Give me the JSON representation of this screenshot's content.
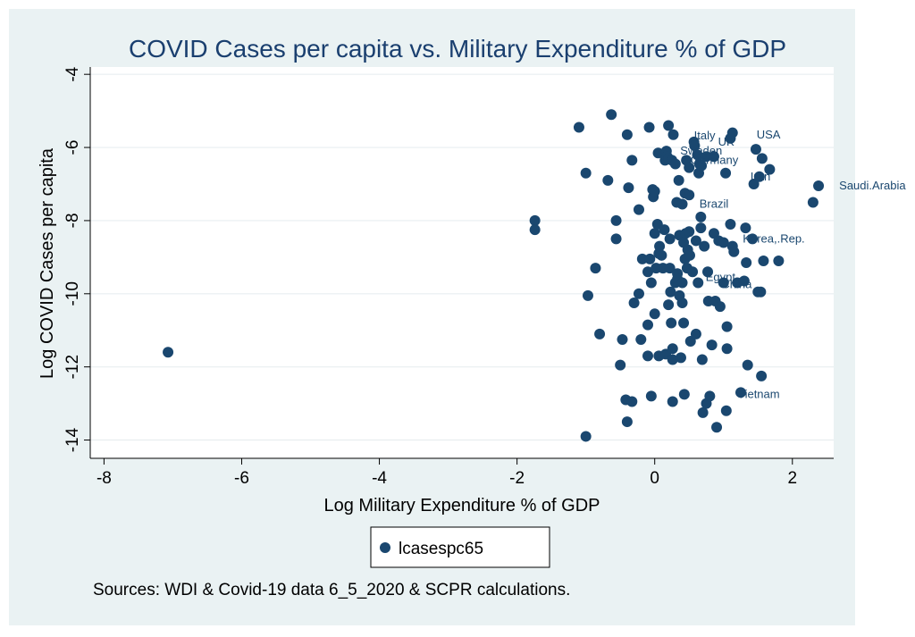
{
  "chart_data": {
    "type": "scatter",
    "title": "COVID Cases per capita vs. Military Expenditure % of GDP",
    "xlabel": "Log Military Expenditure % of GDP",
    "ylabel": "Log COVID Cases per capita",
    "xlim": [
      -8.2,
      2.6
    ],
    "ylim": [
      -14.5,
      -3.8
    ],
    "xticks": [
      -8,
      -6,
      -4,
      -2,
      0,
      2
    ],
    "yticks": [
      -4,
      -6,
      -8,
      -10,
      -12,
      -14
    ],
    "xtick_labels": [
      "-8",
      "-6",
      "-4",
      "-2",
      "0",
      "2"
    ],
    "ytick_labels": [
      "-4",
      "-6",
      "-8",
      "-10",
      "-12",
      "-14"
    ],
    "grid": "horizontal",
    "legend_position": "bottom",
    "note": "Sources: WDI & Covid-19 data 6_5_2020 & SCPR calculations.",
    "marker_color": "#1a476f",
    "series": [
      {
        "name": "lcasespc65",
        "points": [
          [
            -7.07,
            -11.6
          ],
          [
            -1.74,
            -8.0
          ],
          [
            -1.74,
            -8.25
          ],
          [
            -1.1,
            -5.45
          ],
          [
            -1.0,
            -6.7
          ],
          [
            -1.0,
            -13.9
          ],
          [
            -0.97,
            -10.05
          ],
          [
            -0.86,
            -9.3
          ],
          [
            -0.8,
            -11.1
          ],
          [
            -0.68,
            -6.9
          ],
          [
            -0.63,
            -5.1
          ],
          [
            -0.56,
            -8.0
          ],
          [
            -0.56,
            -8.5
          ],
          [
            -0.5,
            -11.95
          ],
          [
            -0.47,
            -11.25
          ],
          [
            -0.42,
            -12.9
          ],
          [
            -0.4,
            -13.5
          ],
          [
            -0.4,
            -5.65
          ],
          [
            -0.38,
            -7.1
          ],
          [
            -0.33,
            -6.35
          ],
          [
            -0.33,
            -12.95
          ],
          [
            -0.3,
            -10.25
          ],
          [
            -0.23,
            -10.0
          ],
          [
            -0.23,
            -7.7
          ],
          [
            -0.2,
            -11.25
          ],
          [
            -0.18,
            -9.05
          ],
          [
            -0.1,
            -10.85
          ],
          [
            -0.1,
            -11.7
          ],
          [
            -0.1,
            -9.4
          ],
          [
            -0.08,
            -5.45
          ],
          [
            -0.07,
            -9.05
          ],
          [
            -0.05,
            -9.7
          ],
          [
            -0.05,
            -12.8
          ],
          [
            -0.03,
            -7.15
          ],
          [
            -0.02,
            -7.35
          ],
          [
            0.0,
            -8.35
          ],
          [
            0.0,
            -10.55
          ],
          [
            0.0,
            -7.2
          ],
          [
            0.02,
            -9.3
          ],
          [
            0.04,
            -8.1
          ],
          [
            0.05,
            -6.15
          ],
          [
            0.06,
            -8.9
          ],
          [
            0.06,
            -11.7
          ],
          [
            0.07,
            -8.7
          ],
          [
            0.1,
            -8.95
          ],
          [
            0.12,
            -9.3
          ],
          [
            0.14,
            -8.25
          ],
          [
            0.15,
            -6.35
          ],
          [
            0.16,
            -11.65
          ],
          [
            0.17,
            -6.1
          ],
          [
            0.18,
            -6.25
          ],
          [
            0.2,
            -10.3
          ],
          [
            0.2,
            -6.3
          ],
          [
            0.2,
            -5.4
          ],
          [
            0.22,
            -8.5
          ],
          [
            0.22,
            -9.3
          ],
          [
            0.23,
            -9.95
          ],
          [
            0.24,
            -10.8
          ],
          [
            0.25,
            -6.35
          ],
          [
            0.26,
            -11.5
          ],
          [
            0.26,
            -11.8
          ],
          [
            0.26,
            -12.95
          ],
          [
            0.27,
            -5.65
          ],
          [
            0.3,
            -6.45
          ],
          [
            0.3,
            -9.7
          ],
          [
            0.32,
            -7.5
          ],
          [
            0.33,
            -9.45
          ],
          [
            0.33,
            -9.6
          ],
          [
            0.35,
            -6.9
          ],
          [
            0.36,
            -8.4
          ],
          [
            0.36,
            -10.05
          ],
          [
            0.38,
            -11.75
          ],
          [
            0.4,
            -7.55
          ],
          [
            0.4,
            -9.7
          ],
          [
            0.4,
            -10.25
          ],
          [
            0.42,
            -8.6
          ],
          [
            0.42,
            -10.8
          ],
          [
            0.43,
            -12.75
          ],
          [
            0.44,
            -9.05
          ],
          [
            0.44,
            -7.25
          ],
          [
            0.45,
            -8.35
          ],
          [
            0.46,
            -6.35
          ],
          [
            0.47,
            -9.3
          ],
          [
            0.48,
            -8.8
          ],
          [
            0.5,
            -8.3
          ],
          [
            0.5,
            -7.3
          ],
          [
            0.5,
            -6.55
          ],
          [
            0.51,
            -8.95
          ],
          [
            0.52,
            -11.3
          ],
          [
            0.55,
            -9.4
          ],
          [
            0.57,
            -5.85
          ],
          [
            0.58,
            -5.95
          ],
          [
            0.6,
            -8.55
          ],
          [
            0.6,
            -11.1
          ],
          [
            0.62,
            -6.2
          ],
          [
            0.63,
            -9.7
          ],
          [
            0.64,
            -6.7
          ],
          [
            0.65,
            -6.45
          ],
          [
            0.67,
            -7.9
          ],
          [
            0.67,
            -8.2
          ],
          [
            0.68,
            -6.5
          ],
          [
            0.69,
            -11.8
          ],
          [
            0.7,
            -13.25
          ],
          [
            0.72,
            -8.7
          ],
          [
            0.75,
            -6.25
          ],
          [
            0.75,
            -13.0
          ],
          [
            0.77,
            -9.4
          ],
          [
            0.78,
            -10.2
          ],
          [
            0.8,
            -12.8
          ],
          [
            0.83,
            -11.4
          ],
          [
            0.86,
            -6.25
          ],
          [
            0.86,
            -8.35
          ],
          [
            0.88,
            -10.2
          ],
          [
            0.9,
            -13.65
          ],
          [
            0.93,
            -8.55
          ],
          [
            0.95,
            -10.35
          ],
          [
            1.0,
            -9.7
          ],
          [
            1.0,
            -8.6
          ],
          [
            1.03,
            -6.7
          ],
          [
            1.04,
            -13.2
          ],
          [
            1.05,
            -10.9
          ],
          [
            1.05,
            -11.5
          ],
          [
            1.1,
            -8.1
          ],
          [
            1.1,
            -5.75
          ],
          [
            1.13,
            -8.7
          ],
          [
            1.13,
            -5.6
          ],
          [
            1.15,
            -8.85
          ],
          [
            1.2,
            -9.7
          ],
          [
            1.25,
            -12.7
          ],
          [
            1.3,
            -9.65
          ],
          [
            1.32,
            -8.2
          ],
          [
            1.33,
            -9.15
          ],
          [
            1.35,
            -11.95
          ],
          [
            1.42,
            -8.5
          ],
          [
            1.44,
            -7.0
          ],
          [
            1.47,
            -6.05
          ],
          [
            1.5,
            -9.95
          ],
          [
            1.52,
            -6.8
          ],
          [
            1.54,
            -9.95
          ],
          [
            1.55,
            -12.25
          ],
          [
            1.56,
            -6.3
          ],
          [
            1.58,
            -9.1
          ],
          [
            1.67,
            -6.6
          ],
          [
            1.8,
            -9.1
          ],
          [
            2.3,
            -7.5
          ],
          [
            2.38,
            -7.05
          ]
        ]
      }
    ],
    "annotations": [
      {
        "text": "USA",
        "x": 1.48,
        "y": -5.75
      },
      {
        "text": "Italy",
        "x": 0.57,
        "y": -5.78
      },
      {
        "text": "UK",
        "x": 0.92,
        "y": -5.95
      },
      {
        "text": "Sweden",
        "x": 0.37,
        "y": -6.2
      },
      {
        "text": "Germany",
        "x": 0.52,
        "y": -6.45
      },
      {
        "text": "Iran",
        "x": 1.39,
        "y": -6.9
      },
      {
        "text": "Saudi.Arabia",
        "x": 2.68,
        "y": -7.15
      },
      {
        "text": "Brazil",
        "x": 0.65,
        "y": -7.65
      },
      {
        "text": "Korea,.Rep.",
        "x": 1.28,
        "y": -8.6
      },
      {
        "text": "Egypt",
        "x": 0.74,
        "y": -9.65
      },
      {
        "text": "China",
        "x": 0.97,
        "y": -9.85
      },
      {
        "text": "Vietnam",
        "x": 1.2,
        "y": -12.85
      }
    ]
  }
}
